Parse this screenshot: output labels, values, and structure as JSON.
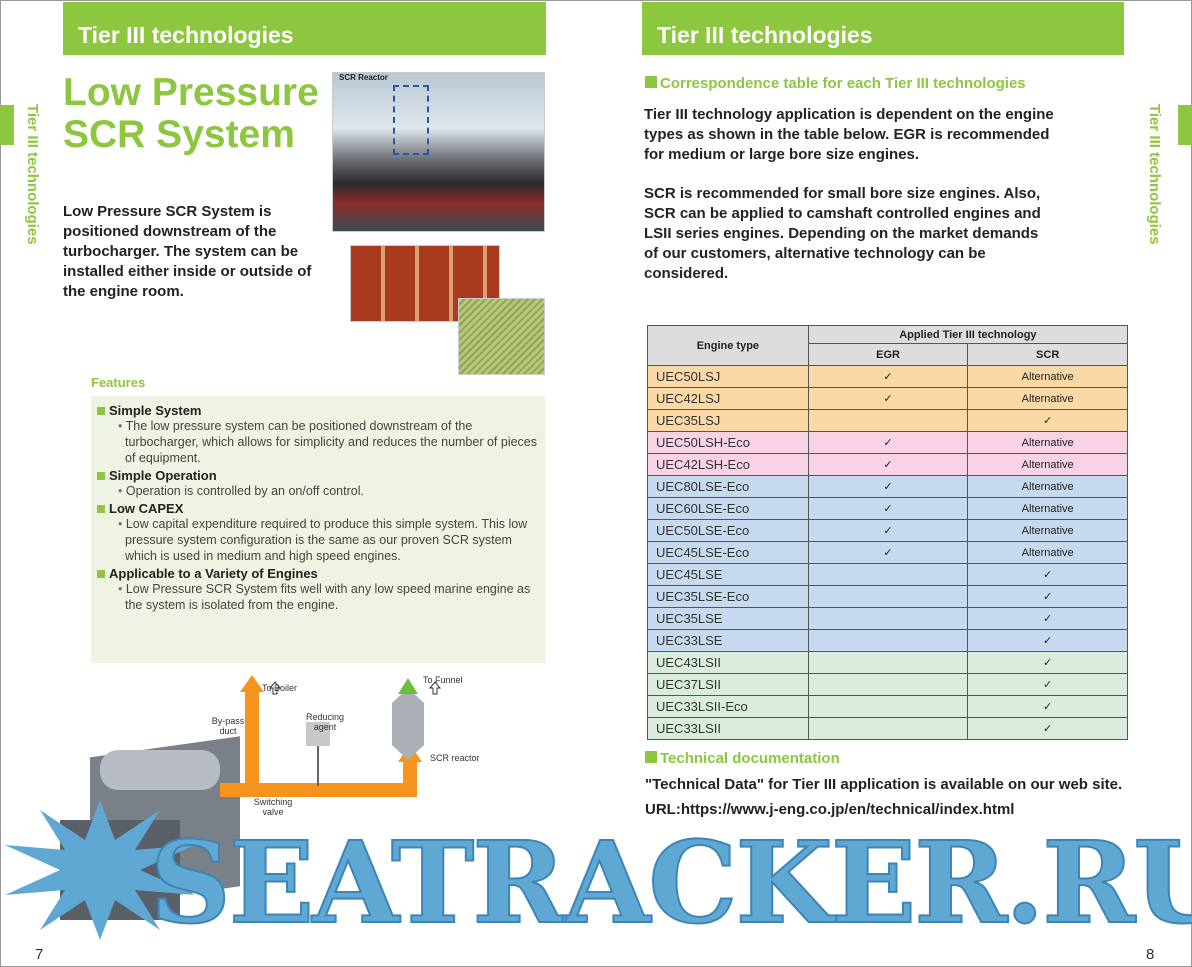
{
  "left": {
    "header": "Tier III technologies",
    "side_tab": "Tier III technologies",
    "title_line1": "Low Pressure",
    "title_line2": "SCR System",
    "photo_label": "SCR Reactor",
    "intro": "Low Pressure SCR System is positioned downstream of the turbocharger. The system can be installed either inside or outside of the engine room.",
    "features_heading": "Features",
    "features": [
      {
        "title": "Simple System",
        "text": "The low pressure system can be positioned downstream of the turbocharger, which allows for simplicity and reduces the number of pieces of equipment."
      },
      {
        "title": "Simple Operation",
        "text": "Operation is controlled by an on/off control."
      },
      {
        "title": "Low CAPEX",
        "text": "Low capital expenditure required to produce this simple system. This low pressure system configuration is the same as our proven SCR system which is used in medium and high speed engines."
      },
      {
        "title": "Applicable to a Variety of Engines",
        "text": "Low Pressure SCR System fits well with any low speed marine engine as the system is isolated from the engine."
      }
    ],
    "diagram": {
      "to_boiler": "To Boiler",
      "to_funnel": "To Funnel",
      "bypass": "By-pass duct",
      "reducing": "Reducing agent",
      "scr_reactor": "SCR reactor",
      "switching": "Switching valve"
    },
    "page_number": "7"
  },
  "right": {
    "header": "Tier III technologies",
    "side_tab": "Tier III technologies",
    "section1": "Correspondence table for each Tier III technologies",
    "para1": "Tier III technology application is dependent on the engine types as shown in the table below. EGR is recommended for medium or large bore size engines.",
    "para2": "SCR is recommended for small bore size engines. Also, SCR can be applied to camshaft controlled engines and LSII series engines. Depending on the market demands of our customers, alternative technology can be considered.",
    "table": {
      "col_engine": "Engine type",
      "col_applied": "Applied Tier III technology",
      "col_egr": "EGR",
      "col_scr": "SCR",
      "rows": [
        {
          "engine": "UEC50LSJ",
          "egr": "✓",
          "scr": "Alternative",
          "group": "j"
        },
        {
          "engine": "UEC42LSJ",
          "egr": "✓",
          "scr": "Alternative",
          "group": "j"
        },
        {
          "engine": "UEC35LSJ",
          "egr": "",
          "scr": "✓",
          "group": "j"
        },
        {
          "engine": "UEC50LSH-Eco",
          "egr": "✓",
          "scr": "Alternative",
          "group": "h"
        },
        {
          "engine": "UEC42LSH-Eco",
          "egr": "✓",
          "scr": "Alternative",
          "group": "h"
        },
        {
          "engine": "UEC80LSE-Eco",
          "egr": "✓",
          "scr": "Alternative",
          "group": "e"
        },
        {
          "engine": "UEC60LSE-Eco",
          "egr": "✓",
          "scr": "Alternative",
          "group": "e"
        },
        {
          "engine": "UEC50LSE-Eco",
          "egr": "✓",
          "scr": "Alternative",
          "group": "e"
        },
        {
          "engine": "UEC45LSE-Eco",
          "egr": "✓",
          "scr": "Alternative",
          "group": "e"
        },
        {
          "engine": "UEC45LSE",
          "egr": "",
          "scr": "✓",
          "group": "e"
        },
        {
          "engine": "UEC35LSE-Eco",
          "egr": "",
          "scr": "✓",
          "group": "e"
        },
        {
          "engine": "UEC35LSE",
          "egr": "",
          "scr": "✓",
          "group": "e"
        },
        {
          "engine": "UEC33LSE",
          "egr": "",
          "scr": "✓",
          "group": "e"
        },
        {
          "engine": "UEC43LSII",
          "egr": "",
          "scr": "✓",
          "group": "ii"
        },
        {
          "engine": "UEC37LSII",
          "egr": "",
          "scr": "✓",
          "group": "ii"
        },
        {
          "engine": "UEC33LSII-Eco",
          "egr": "",
          "scr": "✓",
          "group": "ii"
        },
        {
          "engine": "UEC33LSII",
          "egr": "",
          "scr": "✓",
          "group": "ii"
        }
      ]
    },
    "section2": "Technical documentation",
    "doc_text": "\"Technical Data\" for Tier III application is available on our web site.",
    "url": "URL:https://www.j-eng.co.jp/en/technical/index.html",
    "page_number": "8"
  },
  "watermark": "SEATRACKER.RU",
  "colors": {
    "accent": "#8dc63f",
    "row_j": "#fbd9a6",
    "row_h": "#f8d3e6",
    "row_e": "#c6d9ef",
    "row_ii": "#d9ecdd",
    "pipe": "#f7941d"
  }
}
